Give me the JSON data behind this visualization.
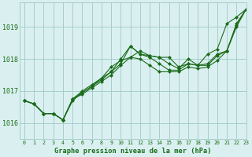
{
  "title": "Graphe pression niveau de la mer (hPa)",
  "bg_color": "#daf0f0",
  "grid_color": "#a8cccc",
  "line_color": "#1a6b1a",
  "marker_color": "#1a6b1a",
  "xlim": [
    -0.5,
    23
  ],
  "ylim": [
    1015.5,
    1019.75
  ],
  "yticks": [
    1016,
    1017,
    1018,
    1019
  ],
  "xticks": [
    0,
    1,
    2,
    3,
    4,
    5,
    6,
    7,
    8,
    9,
    10,
    11,
    12,
    13,
    14,
    15,
    16,
    17,
    18,
    19,
    20,
    21,
    22,
    23
  ],
  "series": [
    [
      1016.7,
      1016.6,
      1016.3,
      1016.3,
      1016.1,
      1016.7,
      1016.95,
      1017.15,
      1017.4,
      1017.75,
      1017.95,
      1018.05,
      1018.25,
      1018.1,
      1018.05,
      1018.05,
      1017.75,
      1017.85,
      1017.8,
      1018.15,
      1018.3,
      1019.1,
      1019.3,
      1019.55
    ],
    [
      1016.7,
      1016.6,
      1016.3,
      1016.3,
      1016.1,
      1016.75,
      1017.0,
      1017.2,
      1017.4,
      1017.6,
      1018.0,
      1018.4,
      1018.15,
      1018.1,
      1018.05,
      1017.85,
      1017.7,
      1018.0,
      1017.8,
      1017.85,
      1018.15,
      1018.25,
      1019.1,
      1019.55
    ],
    [
      1016.7,
      1016.6,
      1016.3,
      1016.3,
      1016.1,
      1016.75,
      1016.95,
      1017.15,
      1017.35,
      1017.6,
      1017.85,
      1018.4,
      1018.15,
      1018.05,
      1017.85,
      1017.65,
      1017.65,
      1017.85,
      1017.8,
      1017.8,
      1018.1,
      1018.25,
      1019.05,
      1019.55
    ],
    [
      1016.7,
      1016.6,
      1016.3,
      1016.3,
      1016.1,
      1016.75,
      1016.9,
      1017.1,
      1017.3,
      1017.5,
      1017.8,
      1018.05,
      1018.0,
      1017.8,
      1017.6,
      1017.6,
      1017.6,
      1017.75,
      1017.7,
      1017.75,
      1017.95,
      1018.25,
      1019.0,
      1019.55
    ]
  ]
}
